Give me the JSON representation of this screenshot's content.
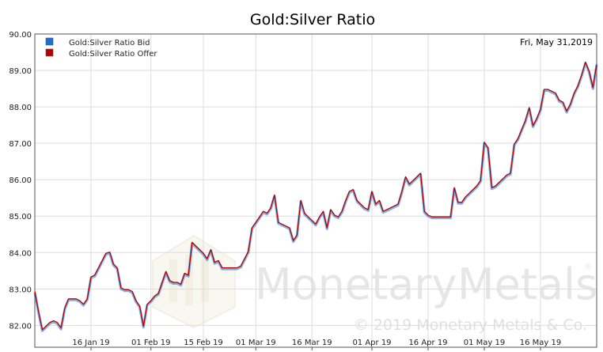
{
  "chart_data": {
    "type": "line",
    "title": "Gold:Silver Ratio",
    "date_label": "Fri, May 31,2019",
    "ylim": [
      81.4,
      90.0
    ],
    "y_ticks": [
      82,
      83,
      84,
      85,
      86,
      87,
      88,
      89,
      90
    ],
    "y_tick_labels": [
      "82.00",
      "83.00",
      "84.00",
      "85.00",
      "86.00",
      "87.00",
      "88.00",
      "89.00",
      "90.00"
    ],
    "x_range": [
      "2019-01-01",
      "2019-05-31"
    ],
    "x_ticks": [
      {
        "date": "2019-01-16",
        "label": "16 Jan 19"
      },
      {
        "date": "2019-02-01",
        "label": "01 Feb 19"
      },
      {
        "date": "2019-02-15",
        "label": "15 Feb 19"
      },
      {
        "date": "2019-03-01",
        "label": "01 Mar 19"
      },
      {
        "date": "2019-03-16",
        "label": "16 Mar 19"
      },
      {
        "date": "2019-04-01",
        "label": "01 Apr 19"
      },
      {
        "date": "2019-04-16",
        "label": "16 Apr 19"
      },
      {
        "date": "2019-05-01",
        "label": "01 May 19"
      },
      {
        "date": "2019-05-16",
        "label": "16 May 19"
      }
    ],
    "grid": true,
    "legend_position": "top-left",
    "series": [
      {
        "name": "Gold:Silver Ratio Bid",
        "color": "#1f6fd1",
        "x": [
          "2019-01-01",
          "2019-01-02",
          "2019-01-03",
          "2019-01-04",
          "2019-01-05",
          "2019-01-06",
          "2019-01-07",
          "2019-01-08",
          "2019-01-09",
          "2019-01-10",
          "2019-01-11",
          "2019-01-12",
          "2019-01-13",
          "2019-01-14",
          "2019-01-15",
          "2019-01-16",
          "2019-01-17",
          "2019-01-18",
          "2019-01-19",
          "2019-01-20",
          "2019-01-21",
          "2019-01-22",
          "2019-01-23",
          "2019-01-24",
          "2019-01-25",
          "2019-01-26",
          "2019-01-27",
          "2019-01-28",
          "2019-01-29",
          "2019-01-30",
          "2019-01-31",
          "2019-02-01",
          "2019-02-02",
          "2019-02-03",
          "2019-02-04",
          "2019-02-05",
          "2019-02-06",
          "2019-02-07",
          "2019-02-08",
          "2019-02-09",
          "2019-02-10",
          "2019-02-11",
          "2019-02-12",
          "2019-02-13",
          "2019-02-14",
          "2019-02-15",
          "2019-02-16",
          "2019-02-17",
          "2019-02-18",
          "2019-02-19",
          "2019-02-20",
          "2019-02-21",
          "2019-02-22",
          "2019-02-23",
          "2019-02-24",
          "2019-02-25",
          "2019-02-26",
          "2019-02-27",
          "2019-02-28",
          "2019-03-01",
          "2019-03-02",
          "2019-03-03",
          "2019-03-04",
          "2019-03-05",
          "2019-03-06",
          "2019-03-07",
          "2019-03-08",
          "2019-03-09",
          "2019-03-10",
          "2019-03-11",
          "2019-03-12",
          "2019-03-13",
          "2019-03-14",
          "2019-03-15",
          "2019-03-16",
          "2019-03-17",
          "2019-03-18",
          "2019-03-19",
          "2019-03-20",
          "2019-03-21",
          "2019-03-22",
          "2019-03-23",
          "2019-03-24",
          "2019-03-25",
          "2019-03-26",
          "2019-03-27",
          "2019-03-28",
          "2019-03-29",
          "2019-03-30",
          "2019-03-31",
          "2019-04-01",
          "2019-04-02",
          "2019-04-03",
          "2019-04-04",
          "2019-04-05",
          "2019-04-06",
          "2019-04-07",
          "2019-04-08",
          "2019-04-09",
          "2019-04-10",
          "2019-04-11",
          "2019-04-12",
          "2019-04-13",
          "2019-04-14",
          "2019-04-15",
          "2019-04-16",
          "2019-04-17",
          "2019-04-18",
          "2019-04-19",
          "2019-04-20",
          "2019-04-21",
          "2019-04-22",
          "2019-04-23",
          "2019-04-24",
          "2019-04-25",
          "2019-04-26",
          "2019-04-27",
          "2019-04-28",
          "2019-04-29",
          "2019-04-30",
          "2019-05-01",
          "2019-05-02",
          "2019-05-03",
          "2019-05-04",
          "2019-05-05",
          "2019-05-06",
          "2019-05-07",
          "2019-05-08",
          "2019-05-09",
          "2019-05-10",
          "2019-05-11",
          "2019-05-12",
          "2019-05-13",
          "2019-05-14",
          "2019-05-15",
          "2019-05-16",
          "2019-05-17",
          "2019-05-18",
          "2019-05-19",
          "2019-05-20",
          "2019-05-21",
          "2019-05-22",
          "2019-05-23",
          "2019-05-24",
          "2019-05-25",
          "2019-05-26",
          "2019-05-27",
          "2019-05-28",
          "2019-05-29",
          "2019-05-30",
          "2019-05-31"
        ],
        "values": [
          82.9,
          82.35,
          81.85,
          81.95,
          82.05,
          82.1,
          82.05,
          81.9,
          82.45,
          82.7,
          82.7,
          82.7,
          82.65,
          82.55,
          82.7,
          83.3,
          83.35,
          83.55,
          83.75,
          83.95,
          83.98,
          83.65,
          83.55,
          83.0,
          82.95,
          82.95,
          82.9,
          82.65,
          82.5,
          81.95,
          82.55,
          82.65,
          82.78,
          82.85,
          83.15,
          83.45,
          83.2,
          83.15,
          83.15,
          83.1,
          83.4,
          83.35,
          84.25,
          84.15,
          84.05,
          83.95,
          83.8,
          84.05,
          83.7,
          83.75,
          83.55,
          83.55,
          83.55,
          83.55,
          83.55,
          83.6,
          83.8,
          84.0,
          84.65,
          84.8,
          84.95,
          85.1,
          85.05,
          85.2,
          85.55,
          84.8,
          84.75,
          84.7,
          84.65,
          84.3,
          84.45,
          85.4,
          85.05,
          84.95,
          84.85,
          84.75,
          84.95,
          85.1,
          84.65,
          85.15,
          85.0,
          84.95,
          85.1,
          85.4,
          85.65,
          85.7,
          85.4,
          85.3,
          85.2,
          85.15,
          85.65,
          85.3,
          85.4,
          85.1,
          85.15,
          85.2,
          85.25,
          85.3,
          85.65,
          86.05,
          85.85,
          85.95,
          86.05,
          86.15,
          85.1,
          85.0,
          84.95,
          84.95,
          84.95,
          84.95,
          84.95,
          84.95,
          85.75,
          85.35,
          85.35,
          85.5,
          85.6,
          85.7,
          85.8,
          85.95,
          87.0,
          86.85,
          85.75,
          85.8,
          85.9,
          86.0,
          86.1,
          86.15,
          86.95,
          87.1,
          87.35,
          87.6,
          87.95,
          87.45,
          87.65,
          87.9,
          88.45,
          88.45,
          88.4,
          88.35,
          88.15,
          88.1,
          87.85,
          88.05,
          88.35,
          88.55,
          88.85,
          89.2,
          88.95,
          88.5,
          89.15
        ]
      },
      {
        "name": "Gold:Silver Ratio Offer",
        "color": "#b40000",
        "x": [
          "2019-01-01",
          "2019-01-02",
          "2019-01-03",
          "2019-01-04",
          "2019-01-05",
          "2019-01-06",
          "2019-01-07",
          "2019-01-08",
          "2019-01-09",
          "2019-01-10",
          "2019-01-11",
          "2019-01-12",
          "2019-01-13",
          "2019-01-14",
          "2019-01-15",
          "2019-01-16",
          "2019-01-17",
          "2019-01-18",
          "2019-01-19",
          "2019-01-20",
          "2019-01-21",
          "2019-01-22",
          "2019-01-23",
          "2019-01-24",
          "2019-01-25",
          "2019-01-26",
          "2019-01-27",
          "2019-01-28",
          "2019-01-29",
          "2019-01-30",
          "2019-01-31",
          "2019-02-01",
          "2019-02-02",
          "2019-02-03",
          "2019-02-04",
          "2019-02-05",
          "2019-02-06",
          "2019-02-07",
          "2019-02-08",
          "2019-02-09",
          "2019-02-10",
          "2019-02-11",
          "2019-02-12",
          "2019-02-13",
          "2019-02-14",
          "2019-02-15",
          "2019-02-16",
          "2019-02-17",
          "2019-02-18",
          "2019-02-19",
          "2019-02-20",
          "2019-02-21",
          "2019-02-22",
          "2019-02-23",
          "2019-02-24",
          "2019-02-25",
          "2019-02-26",
          "2019-02-27",
          "2019-02-28",
          "2019-03-01",
          "2019-03-02",
          "2019-03-03",
          "2019-03-04",
          "2019-03-05",
          "2019-03-06",
          "2019-03-07",
          "2019-03-08",
          "2019-03-09",
          "2019-03-10",
          "2019-03-11",
          "2019-03-12",
          "2019-03-13",
          "2019-03-14",
          "2019-03-15",
          "2019-03-16",
          "2019-03-17",
          "2019-03-18",
          "2019-03-19",
          "2019-03-20",
          "2019-03-21",
          "2019-03-22",
          "2019-03-23",
          "2019-03-24",
          "2019-03-25",
          "2019-03-26",
          "2019-03-27",
          "2019-03-28",
          "2019-03-29",
          "2019-03-30",
          "2019-03-31",
          "2019-04-01",
          "2019-04-02",
          "2019-04-03",
          "2019-04-04",
          "2019-04-05",
          "2019-04-06",
          "2019-04-07",
          "2019-04-08",
          "2019-04-09",
          "2019-04-10",
          "2019-04-11",
          "2019-04-12",
          "2019-04-13",
          "2019-04-14",
          "2019-04-15",
          "2019-04-16",
          "2019-04-17",
          "2019-04-18",
          "2019-04-19",
          "2019-04-20",
          "2019-04-21",
          "2019-04-22",
          "2019-04-23",
          "2019-04-24",
          "2019-04-25",
          "2019-04-26",
          "2019-04-27",
          "2019-04-28",
          "2019-04-29",
          "2019-04-30",
          "2019-05-01",
          "2019-05-02",
          "2019-05-03",
          "2019-05-04",
          "2019-05-05",
          "2019-05-06",
          "2019-05-07",
          "2019-05-08",
          "2019-05-09",
          "2019-05-10",
          "2019-05-11",
          "2019-05-12",
          "2019-05-13",
          "2019-05-14",
          "2019-05-15",
          "2019-05-16",
          "2019-05-17",
          "2019-05-18",
          "2019-05-19",
          "2019-05-20",
          "2019-05-21",
          "2019-05-22",
          "2019-05-23",
          "2019-05-24",
          "2019-05-25",
          "2019-05-26",
          "2019-05-27",
          "2019-05-28",
          "2019-05-29",
          "2019-05-30",
          "2019-05-31"
        ],
        "values": [
          82.93,
          82.38,
          81.88,
          81.98,
          82.08,
          82.13,
          82.08,
          81.93,
          82.48,
          82.73,
          82.73,
          82.73,
          82.68,
          82.58,
          82.73,
          83.33,
          83.38,
          83.58,
          83.78,
          83.98,
          84.01,
          83.68,
          83.58,
          83.03,
          82.98,
          82.98,
          82.93,
          82.68,
          82.53,
          81.98,
          82.58,
          82.68,
          82.81,
          82.88,
          83.18,
          83.48,
          83.23,
          83.18,
          83.18,
          83.13,
          83.43,
          83.38,
          84.28,
          84.18,
          84.08,
          83.98,
          83.83,
          84.08,
          83.73,
          83.78,
          83.58,
          83.58,
          83.58,
          83.58,
          83.58,
          83.63,
          83.83,
          84.03,
          84.68,
          84.83,
          84.98,
          85.13,
          85.08,
          85.23,
          85.58,
          84.83,
          84.78,
          84.73,
          84.68,
          84.33,
          84.48,
          85.43,
          85.08,
          84.98,
          84.88,
          84.78,
          84.98,
          85.13,
          84.68,
          85.18,
          85.03,
          84.98,
          85.13,
          85.43,
          85.68,
          85.73,
          85.43,
          85.33,
          85.23,
          85.18,
          85.68,
          85.33,
          85.43,
          85.13,
          85.18,
          85.23,
          85.28,
          85.33,
          85.68,
          86.08,
          85.88,
          85.98,
          86.08,
          86.18,
          85.13,
          85.03,
          84.98,
          84.98,
          84.98,
          84.98,
          84.98,
          84.98,
          85.78,
          85.38,
          85.38,
          85.53,
          85.63,
          85.73,
          85.83,
          85.98,
          87.03,
          86.88,
          85.78,
          85.83,
          85.93,
          86.03,
          86.13,
          86.18,
          86.98,
          87.13,
          87.38,
          87.63,
          87.98,
          87.48,
          87.68,
          87.93,
          88.48,
          88.48,
          88.43,
          88.38,
          88.18,
          88.13,
          87.88,
          88.08,
          88.38,
          88.58,
          88.88,
          89.23,
          88.98,
          88.53,
          89.18
        ]
      }
    ]
  },
  "watermark": {
    "brand_part1": "Monetary",
    "brand_part2": "Metals",
    "registered": "®",
    "copyright": "© 2019 Monetary Metals & Co."
  }
}
